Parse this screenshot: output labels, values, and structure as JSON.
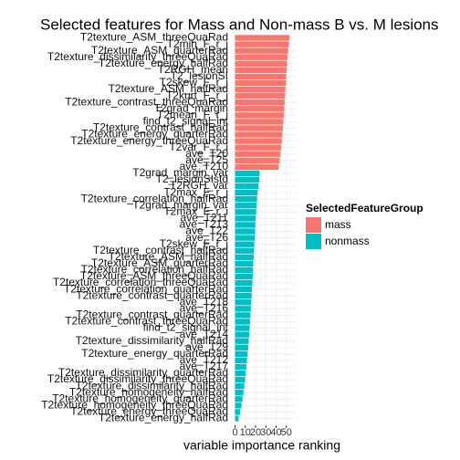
{
  "chart_data": {
    "type": "barh",
    "title": "Selected features for Mass and Non-mass B vs. M lesions",
    "xlabel": "variable importance ranking",
    "legend_title": "SelectedFeatureGroup",
    "categories": [
      "T2texture_ASM_threeQuaRad",
      "T2min_F_r_i",
      "T2texture_ASM_quarterRad",
      "T2texture_dissimilarity_threeQuaRad",
      "T2texture_energy_halfRad",
      "T2RGH_mean",
      "T2_lesionSI",
      "T2skew_F_r_i",
      "T2texture_ASM_halfRad",
      "T2kurt_F_r_i",
      "T2texture_contrast_threeQuaRad",
      "T2grad_margin",
      "T2mean_F_r_i",
      "find_t2_signal_int",
      "T2texture_contrast_halfRad",
      "T2texture_energy_quarterRad",
      "T2texture_energy_threeQuaRad",
      "T2var_F_r_i",
      "ave_T20",
      "ave_T25",
      "ave_T210",
      "T2grad_margin_var",
      "T2_lesionSIstd",
      "T2RGH_var",
      "T2max_F_r_i",
      "T2texture_correlation_halfRad",
      "T2grad_margin_var",
      "T2max_F_r_i",
      "ave_T211",
      "ave_T213",
      "ave_T22",
      "ave_T26",
      "T2skew_F_r_i",
      "T2texture_contrast_halfRad",
      "T2texture_ASM_halfRad",
      "T2texture_ASM_quarterRad",
      "T2texture_correlation_halfRad",
      "T2texture_ASM_threeQuaRad",
      "T2texture_correlation_threeQuaRad",
      "T2texture_correlation_quarterRad",
      "T2texture_contrast_quarterRad",
      "ave_T218",
      "ave_T216",
      "T2texture_contrast_quarterRad",
      "T2texture_contrast_threeQuaRad",
      "find_t2_signal_int",
      "ave_T214",
      "T2texture_dissimilarity_halfRad",
      "ave_T29",
      "T2texture_energy_quarterRad",
      "ave_T212",
      "ave_T217",
      "T2texture_dissimilarity_quarterRad",
      "T2texture_dissimilarity_threeQuaRad",
      "T2texture_dissimilarity_halfRad",
      "T2texture_homogeneity_halfRad",
      "T2texture_homogeneity_quarterRad",
      "T2texture_homogeneity_threeQuaRad",
      "T2texture_energy_threeQuaRad",
      "T2texture_energy_halfRad"
    ],
    "series": [
      {
        "name": "mass",
        "color": "#F8766D",
        "values": [
          53,
          52.5,
          51.8,
          51,
          50.6,
          50.2,
          49.8,
          49.5,
          49,
          48.7,
          48.3,
          48,
          47.5,
          47,
          46.6,
          46,
          45.5,
          45,
          44.2,
          43.5,
          42.5,
          null,
          null,
          null,
          null,
          null,
          null,
          null,
          null,
          null,
          null,
          null,
          null,
          null,
          null,
          null,
          null,
          null,
          null,
          null,
          null,
          null,
          null,
          null,
          null,
          null,
          null,
          null,
          null,
          null,
          null,
          null,
          null,
          null,
          null,
          null,
          null,
          null,
          null,
          null
        ]
      },
      {
        "name": "nonmass",
        "color": "#00BFC4",
        "values": [
          null,
          null,
          null,
          null,
          null,
          null,
          null,
          null,
          null,
          null,
          null,
          null,
          null,
          null,
          null,
          null,
          null,
          null,
          null,
          null,
          null,
          24,
          23.5,
          22.8,
          22,
          21.5,
          21,
          20.6,
          20.2,
          19.8,
          19.5,
          19.2,
          18.8,
          18.5,
          18.2,
          17.8,
          17.5,
          17.2,
          16.9,
          16.5,
          16.2,
          15.8,
          15.4,
          15,
          14.6,
          14.2,
          13.8,
          13.3,
          12.8,
          12.2,
          11.6,
          11,
          10.4,
          9.8,
          9,
          8.2,
          7.3,
          6.3,
          5,
          3.5
        ]
      }
    ],
    "xlim": [
      -4,
      60
    ],
    "xticks": [
      0,
      10,
      20,
      30,
      40,
      50
    ],
    "grid": true
  }
}
